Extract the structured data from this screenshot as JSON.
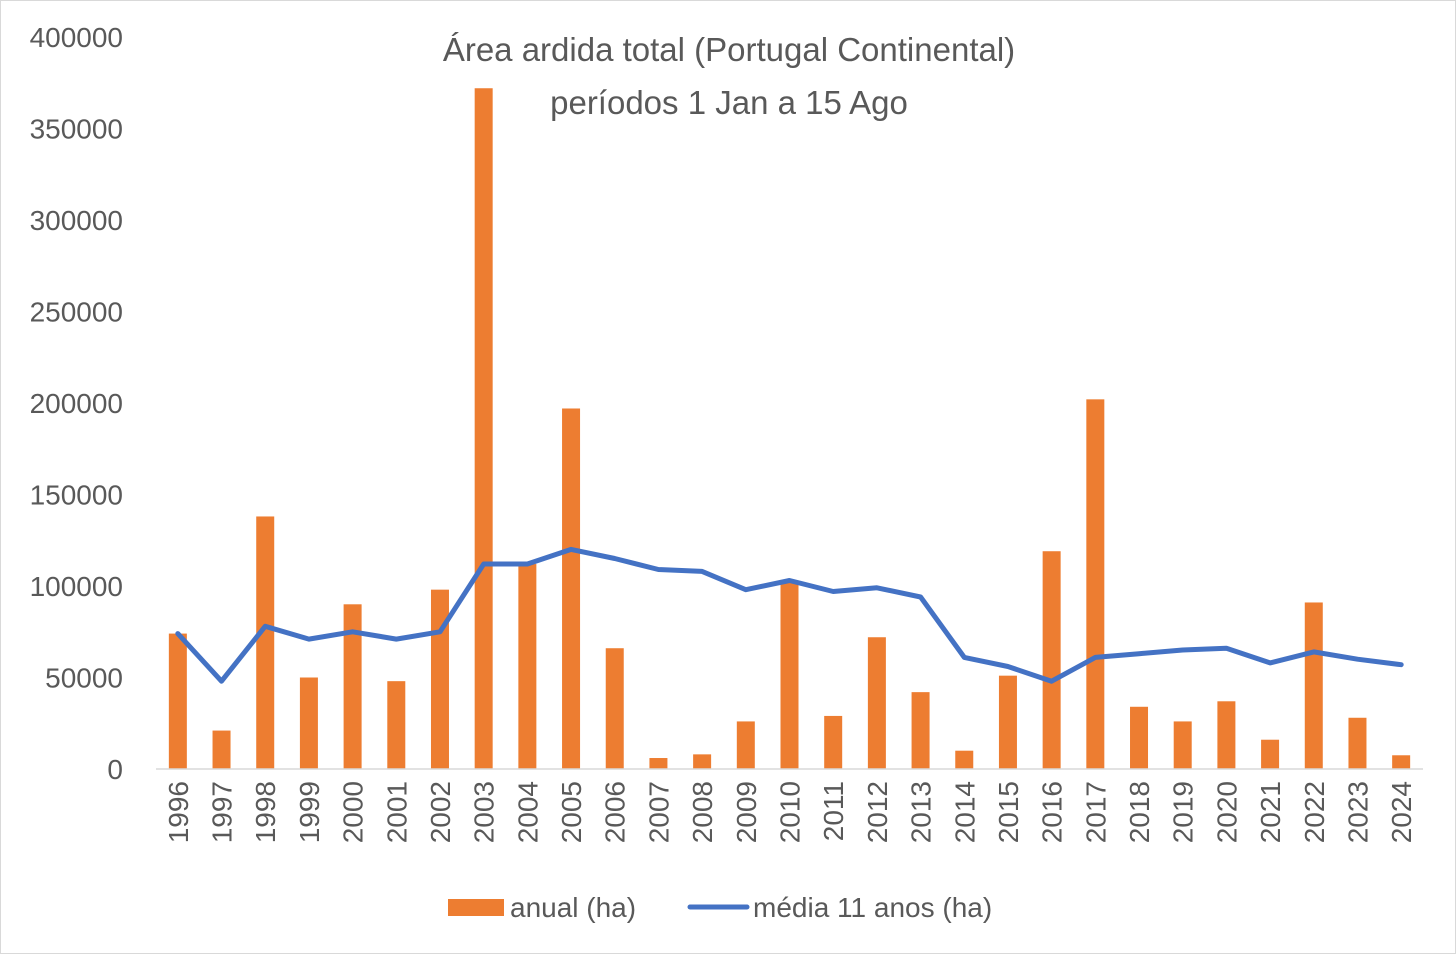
{
  "chart_data": {
    "type": "bar",
    "title": "Área ardida total (Portugal Continental)",
    "subtitle": "períodos 1 Jan a 15 Ago",
    "xlabel": "",
    "ylabel": "",
    "ylim": [
      0,
      400000
    ],
    "yticks": [
      "0",
      "50000",
      "100000",
      "150000",
      "200000",
      "250000",
      "300000",
      "350000",
      "400000"
    ],
    "grid": false,
    "legend_position": "bottom",
    "categories": [
      "1996",
      "1997",
      "1998",
      "1999",
      "2000",
      "2001",
      "2002",
      "2003",
      "2004",
      "2005",
      "2006",
      "2007",
      "2008",
      "2009",
      "2010",
      "2011",
      "2012",
      "2013",
      "2014",
      "2015",
      "2016",
      "2017",
      "2018",
      "2019",
      "2020",
      "2021",
      "2022",
      "2023",
      "2024"
    ],
    "series": [
      {
        "name": "anual (ha)",
        "type": "bar",
        "color": "#ED7D31",
        "values": [
          74000,
          21000,
          138000,
          50000,
          90000,
          48000,
          98000,
          372000,
          112000,
          197000,
          66000,
          6000,
          8000,
          26000,
          102000,
          29000,
          72000,
          42000,
          10000,
          51000,
          119000,
          202000,
          34000,
          26000,
          37000,
          16000,
          91000,
          28000,
          7500
        ]
      },
      {
        "name": "média 11 anos (ha)",
        "type": "line",
        "color": "#4472C4",
        "values": [
          74000,
          48000,
          78000,
          71000,
          75000,
          71000,
          75000,
          112000,
          112000,
          120000,
          115000,
          109000,
          108000,
          98000,
          103000,
          97000,
          99000,
          94000,
          61000,
          56000,
          48000,
          61000,
          63000,
          65000,
          66000,
          58000,
          64000,
          60000,
          57000
        ]
      }
    ]
  }
}
